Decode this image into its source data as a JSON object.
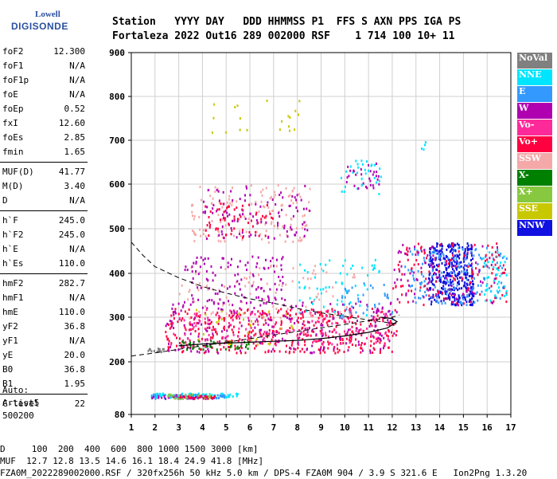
{
  "logo": {
    "line1": "Lowell",
    "line2": "DIGISONDE"
  },
  "header": {
    "labels": "Station   YYYY DAY   DDD HHMMSS P1  FFS S AXN PPS IGA PS",
    "values": "Fortaleza 2022 Out16 289 002000 RSF    1 714 100 10+ 11"
  },
  "params_groups": [
    [
      {
        "name": "foF2",
        "value": "12.300"
      },
      {
        "name": "foF1",
        "value": "N/A"
      },
      {
        "name": "foF1p",
        "value": "N/A"
      },
      {
        "name": "foE",
        "value": "N/A"
      },
      {
        "name": "foEp",
        "value": "0.52"
      },
      {
        "name": "fxI",
        "value": "12.60"
      },
      {
        "name": "foEs",
        "value": "2.85"
      },
      {
        "name": "fmin",
        "value": "1.65"
      }
    ],
    [
      {
        "name": "MUF(D)",
        "value": "41.77"
      },
      {
        "name": "M(D)",
        "value": "3.40"
      },
      {
        "name": "D",
        "value": "N/A"
      }
    ],
    [
      {
        "name": "h`F",
        "value": "245.0"
      },
      {
        "name": "h`F2",
        "value": "245.0"
      },
      {
        "name": "h`E",
        "value": "N/A"
      },
      {
        "name": "h`Es",
        "value": "110.0"
      }
    ],
    [
      {
        "name": "hmF2",
        "value": "282.7"
      },
      {
        "name": "hmF1",
        "value": "N/A"
      },
      {
        "name": "hmE",
        "value": "110.0"
      },
      {
        "name": "yF2",
        "value": "36.8"
      },
      {
        "name": "yF1",
        "value": "N/A"
      },
      {
        "name": "yE",
        "value": "20.0"
      },
      {
        "name": "B0",
        "value": "36.8"
      },
      {
        "name": "B1",
        "value": "1.95"
      }
    ],
    [
      {
        "name": "C-level",
        "value": "22"
      }
    ]
  ],
  "auto": {
    "line1": "Auto:",
    "line2": "Artist5",
    "line3": "500200"
  },
  "legend": [
    {
      "label": "NoVal",
      "color": "#808080"
    },
    {
      "label": "NNE",
      "color": "#00e5ff"
    },
    {
      "label": "E",
      "color": "#3399ff"
    },
    {
      "label": "W",
      "color": "#b000b0"
    },
    {
      "label": "Vo-",
      "color": "#ff2a9a"
    },
    {
      "label": "Vo+",
      "color": "#ff0040"
    },
    {
      "label": "SSW",
      "color": "#f4a8a8"
    },
    {
      "label": "X-",
      "color": "#008000"
    },
    {
      "label": "X+",
      "color": "#88c840"
    },
    {
      "label": "SSE",
      "color": "#c8c800"
    },
    {
      "label": "NNW",
      "color": "#1010e0"
    }
  ],
  "footer": {
    "line1": "D     100  200  400  600  800 1000 1500 3000 [km]",
    "line2": "MUF  12.7 12.8 13.5 14.6 16.1 18.4 24.9 41.8 [MHz]",
    "line3": "FZA0M_2022289002000.RSF / 320fx256h 50 kHz 5.0 km / DPS-4 FZA0M 904 / 3.9 S 321.6 E   Ion2Png 1.3.20"
  },
  "chart_data": {
    "type": "scatter",
    "xlim": [
      1,
      17
    ],
    "ylim": [
      80,
      900
    ],
    "x_ticks": [
      1,
      2,
      3,
      4,
      5,
      6,
      7,
      8,
      9,
      10,
      11,
      12,
      13,
      14,
      15,
      16,
      17
    ],
    "y_ticks": [
      80,
      200,
      300,
      400,
      500,
      600,
      700,
      800,
      900
    ],
    "grid": true,
    "legend_position": "right",
    "clusters": [
      {
        "name": "NoVal",
        "x": [
          1.6,
          2.4
        ],
        "y": [
          223,
          232
        ],
        "n": 15,
        "color": "#808080"
      },
      {
        "name": "Vo+",
        "x": [
          2.4,
          12.2
        ],
        "y": [
          222,
          322
        ],
        "n": 420,
        "color": "#ff0040"
      },
      {
        "name": "W",
        "x": [
          2.4,
          12.2
        ],
        "y": [
          222,
          340
        ],
        "n": 220,
        "color": "#b000b0"
      },
      {
        "name": "Vo-",
        "x": [
          2.6,
          11.8
        ],
        "y": [
          240,
          320
        ],
        "n": 160,
        "color": "#ff2a9a"
      },
      {
        "name": "X-",
        "x": [
          3.0,
          6.0
        ],
        "y": [
          230,
          250
        ],
        "n": 40,
        "color": "#008000"
      },
      {
        "name": "SSE",
        "x": [
          3.5,
          8.0
        ],
        "y": [
          240,
          320
        ],
        "n": 30,
        "color": "#c8c800"
      },
      {
        "name": "NNE",
        "x": [
          8.0,
          11.5
        ],
        "y": [
          300,
          440
        ],
        "n": 60,
        "color": "#00e5ff"
      },
      {
        "name": "E",
        "x": [
          9.8,
          12.0
        ],
        "y": [
          290,
          380
        ],
        "n": 40,
        "color": "#3399ff"
      },
      {
        "name": "SSW",
        "x": [
          3.0,
          10.5
        ],
        "y": [
          300,
          420
        ],
        "n": 90,
        "color": "#f4a8a8"
      },
      {
        "name": "W-mid",
        "x": [
          3.2,
          7.5
        ],
        "y": [
          330,
          440
        ],
        "n": 120,
        "color": "#b000b0"
      },
      {
        "name": "NNW",
        "x": [
          13.5,
          15.4
        ],
        "y": [
          330,
          470
        ],
        "n": 360,
        "color": "#1010e0"
      },
      {
        "name": "E-right",
        "x": [
          12.5,
          16.8
        ],
        "y": [
          330,
          460
        ],
        "n": 160,
        "color": "#3399ff"
      },
      {
        "name": "Vo+-right",
        "x": [
          12.0,
          16.8
        ],
        "y": [
          330,
          470
        ],
        "n": 120,
        "color": "#ff0040"
      },
      {
        "name": "W-right",
        "x": [
          12.0,
          16.5
        ],
        "y": [
          330,
          470
        ],
        "n": 80,
        "color": "#b000b0"
      },
      {
        "name": "NNE-right",
        "x": [
          15.8,
          16.8
        ],
        "y": [
          340,
          450
        ],
        "n": 40,
        "color": "#00e5ff"
      },
      {
        "name": "SSW-2nd",
        "x": [
          3.5,
          8.5
        ],
        "y": [
          470,
          600
        ],
        "n": 140,
        "color": "#f4a8a8"
      },
      {
        "name": "W-2nd",
        "x": [
          4.0,
          8.5
        ],
        "y": [
          480,
          600
        ],
        "n": 100,
        "color": "#b000b0"
      },
      {
        "name": "Vo+-2nd",
        "x": [
          4.0,
          7.0
        ],
        "y": [
          480,
          560
        ],
        "n": 60,
        "color": "#ff0040"
      },
      {
        "name": "NNE-2nd",
        "x": [
          9.8,
          11.5
        ],
        "y": [
          580,
          660
        ],
        "n": 30,
        "color": "#00e5ff"
      },
      {
        "name": "W-2nd-b",
        "x": [
          10.0,
          11.5
        ],
        "y": [
          590,
          650
        ],
        "n": 30,
        "color": "#b000b0"
      },
      {
        "name": "SSE-3rd",
        "x": [
          4.3,
          8.2
        ],
        "y": [
          720,
          800
        ],
        "n": 20,
        "color": "#c8c800"
      },
      {
        "name": "NNE-3rd",
        "x": [
          13.2,
          13.4
        ],
        "y": [
          670,
          700
        ],
        "n": 4,
        "color": "#00e5ff"
      },
      {
        "name": "NNE-Es",
        "x": [
          1.8,
          5.5
        ],
        "y": [
          120,
          130
        ],
        "n": 80,
        "color": "#00e5ff"
      },
      {
        "name": "E-Es",
        "x": [
          1.8,
          5.0
        ],
        "y": [
          118,
          128
        ],
        "n": 50,
        "color": "#3399ff"
      },
      {
        "name": "W-Es",
        "x": [
          1.8,
          4.5
        ],
        "y": [
          118,
          126
        ],
        "n": 40,
        "color": "#b000b0"
      },
      {
        "name": "X+-Es",
        "x": [
          2.5,
          4.5
        ],
        "y": [
          118,
          128
        ],
        "n": 30,
        "color": "#88c840"
      },
      {
        "name": "Vo+-Es",
        "x": [
          3.0,
          4.5
        ],
        "y": [
          118,
          126
        ],
        "n": 20,
        "color": "#ff0040"
      }
    ],
    "profile_dashed": {
      "x": [
        1.0,
        1.5,
        2.0,
        3.0,
        4.0,
        5.0,
        6.0,
        7.0,
        8.0,
        9.0,
        10.0,
        11.0,
        11.8,
        12.3
      ],
      "y": [
        470,
        440,
        415,
        390,
        370,
        355,
        342,
        332,
        320,
        310,
        302,
        294,
        288,
        284
      ]
    },
    "profile_dashed_low": {
      "x": [
        1.0,
        2.0,
        3.0,
        4.0,
        5.0,
        6.0,
        7.0,
        8.0,
        9.0,
        10.0,
        11.0,
        12.0,
        12.3
      ],
      "y": [
        213,
        220,
        228,
        236,
        244,
        252,
        260,
        268,
        276,
        284,
        292,
        300,
        305
      ]
    },
    "trace_solid": {
      "x": [
        3.0,
        4.0,
        5.0,
        6.0,
        7.0,
        8.0,
        9.0,
        10.0,
        11.0,
        11.8,
        12.0,
        12.2,
        12.0,
        11.5
      ],
      "y": [
        236,
        240,
        242,
        244,
        246,
        248,
        252,
        258,
        266,
        276,
        283,
        290,
        297,
        300
      ]
    }
  }
}
